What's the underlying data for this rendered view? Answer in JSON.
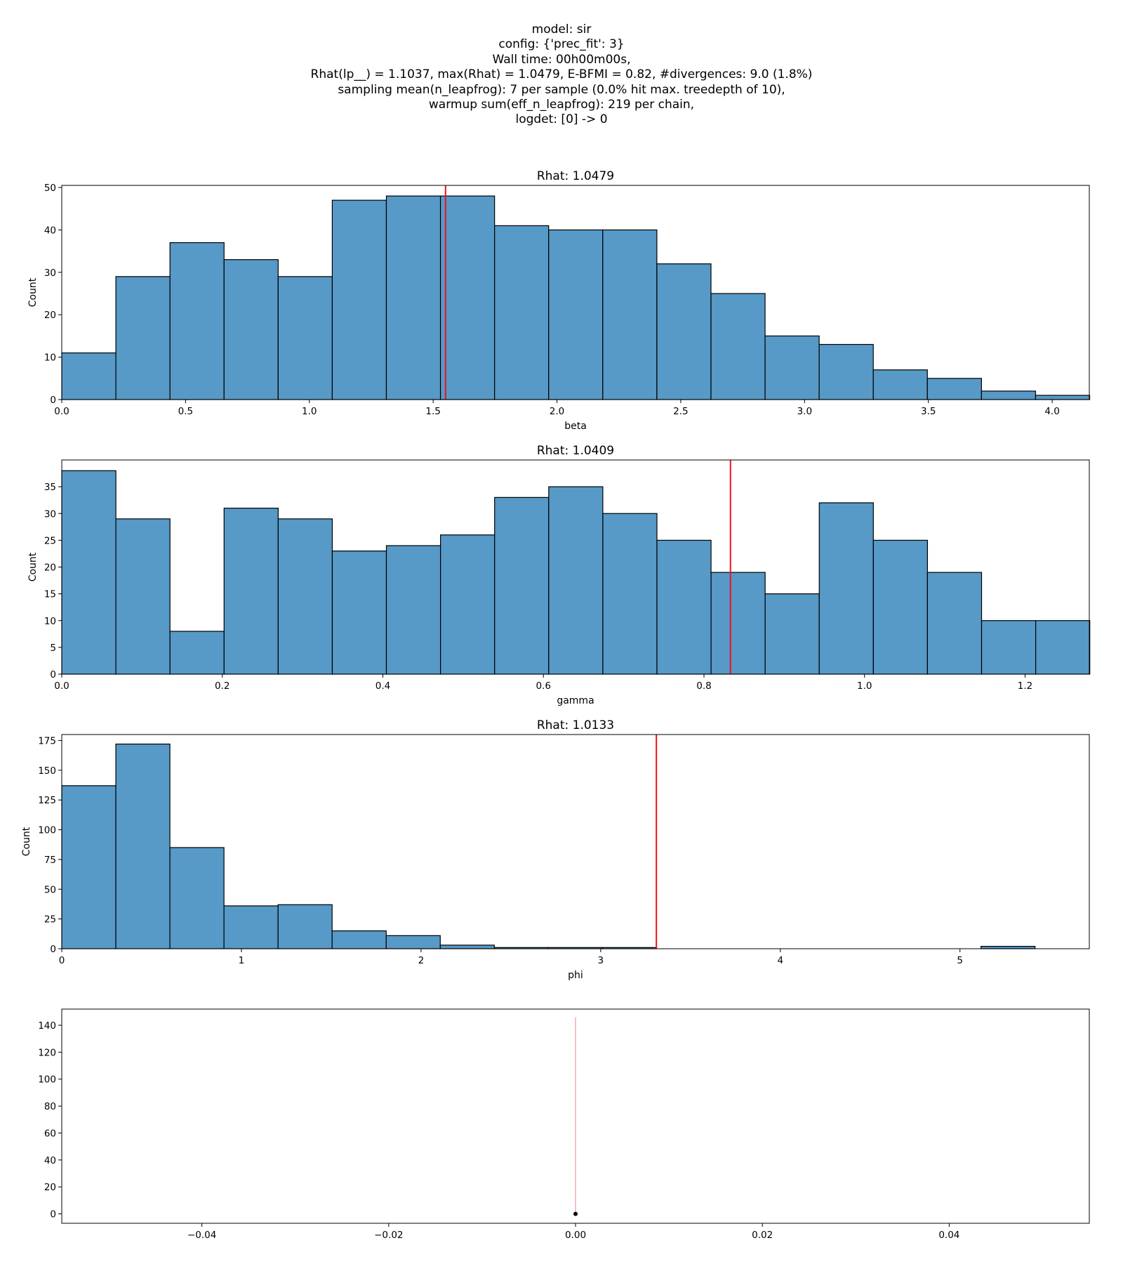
{
  "suptitle": {
    "lines": [
      "model: sir",
      "config: {'prec_fit': 3}",
      "Wall time: 00h00m00s,",
      "Rhat(lp__) = 1.1037, max(Rhat) = 1.0479, E-BFMI = 0.82, #divergences: 9.0 (1.8%)",
      "sampling mean(n_leapfrog): 7 per sample (0.0% hit max. treedepth of 10),",
      "warmup sum(eff_n_leapfrog): 219 per chain,",
      "logdet: [0] -> 0"
    ]
  },
  "colors": {
    "bar_fill": "#5799c7",
    "bar_edge": "#000000",
    "ref_line": "#e8141c",
    "point": "#000000"
  },
  "chart_data": [
    {
      "type": "bar",
      "title": "Rhat: 1.0479",
      "xlabel": "beta",
      "ylabel": "Count",
      "bin_start": 0.0,
      "bin_width": 0.2185,
      "values": [
        11,
        29,
        37,
        33,
        29,
        47,
        48,
        48,
        41,
        40,
        40,
        32,
        25,
        15,
        13,
        7,
        5,
        2,
        1
      ],
      "xlim": [
        0,
        4.15
      ],
      "ylim": [
        0,
        50.5
      ],
      "xticks": [
        0.0,
        0.5,
        1.0,
        1.5,
        2.0,
        2.5,
        3.0,
        3.5,
        4.0
      ],
      "xtick_labels": [
        "0.0",
        "0.5",
        "1.0",
        "1.5",
        "2.0",
        "2.5",
        "3.0",
        "3.5",
        "4.0"
      ],
      "yticks": [
        0,
        10,
        20,
        30,
        40,
        50
      ],
      "ytick_labels": [
        "0",
        "10",
        "20",
        "30",
        "40",
        "50"
      ],
      "vline": 1.55
    },
    {
      "type": "bar",
      "title": "Rhat: 1.0409",
      "xlabel": "gamma",
      "ylabel": "Count",
      "bin_start": 0.0,
      "bin_width": 0.0674,
      "values": [
        38,
        29,
        8,
        31,
        29,
        23,
        24,
        26,
        33,
        35,
        30,
        25,
        19,
        15,
        32,
        25,
        19,
        10,
        10
      ],
      "xlim": [
        0,
        1.28
      ],
      "ylim": [
        0,
        40
      ],
      "xticks": [
        0.0,
        0.2,
        0.4,
        0.6,
        0.8,
        1.0,
        1.2
      ],
      "xtick_labels": [
        "0.0",
        "0.2",
        "0.4",
        "0.6",
        "0.8",
        "1.0",
        "1.2"
      ],
      "yticks": [
        0,
        5,
        10,
        15,
        20,
        25,
        30,
        35
      ],
      "ytick_labels": [
        "0",
        "5",
        "10",
        "15",
        "20",
        "25",
        "30",
        "35"
      ],
      "vline": 0.833
    },
    {
      "type": "bar",
      "title": "Rhat: 1.0133",
      "xlabel": "phi",
      "ylabel": "Count",
      "bin_start": 0.0,
      "bin_width": 0.301,
      "values": [
        137,
        172,
        85,
        36,
        37,
        15,
        11,
        3,
        1,
        1,
        1,
        0,
        0,
        0,
        0,
        0,
        0,
        2,
        0
      ],
      "xlim": [
        0,
        5.72
      ],
      "ylim": [
        0,
        180
      ],
      "xticks": [
        0,
        1,
        2,
        3,
        4,
        5
      ],
      "xtick_labels": [
        "0",
        "1",
        "2",
        "3",
        "4",
        "5"
      ],
      "yticks": [
        0,
        25,
        50,
        75,
        100,
        125,
        150,
        175
      ],
      "ytick_labels": [
        "0",
        "25",
        "50",
        "75",
        "100",
        "125",
        "150",
        "175"
      ],
      "vline": 3.31
    },
    {
      "type": "scatter",
      "title": "",
      "xlabel": "",
      "ylabel": "",
      "points": [
        {
          "x": 0.0,
          "y": 0
        }
      ],
      "ref_segment": {
        "x": 0.0,
        "y_from": 0,
        "y_to": 146
      },
      "xlim": [
        -0.055,
        0.055
      ],
      "ylim": [
        -7,
        152
      ],
      "xticks": [
        -0.04,
        -0.02,
        0.0,
        0.02,
        0.04
      ],
      "xtick_labels": [
        "−0.04",
        "−0.02",
        "0.00",
        "0.02",
        "0.04"
      ],
      "yticks": [
        0,
        20,
        40,
        60,
        80,
        100,
        120,
        140
      ],
      "ytick_labels": [
        "0",
        "20",
        "40",
        "60",
        "80",
        "100",
        "120",
        "140"
      ]
    }
  ]
}
